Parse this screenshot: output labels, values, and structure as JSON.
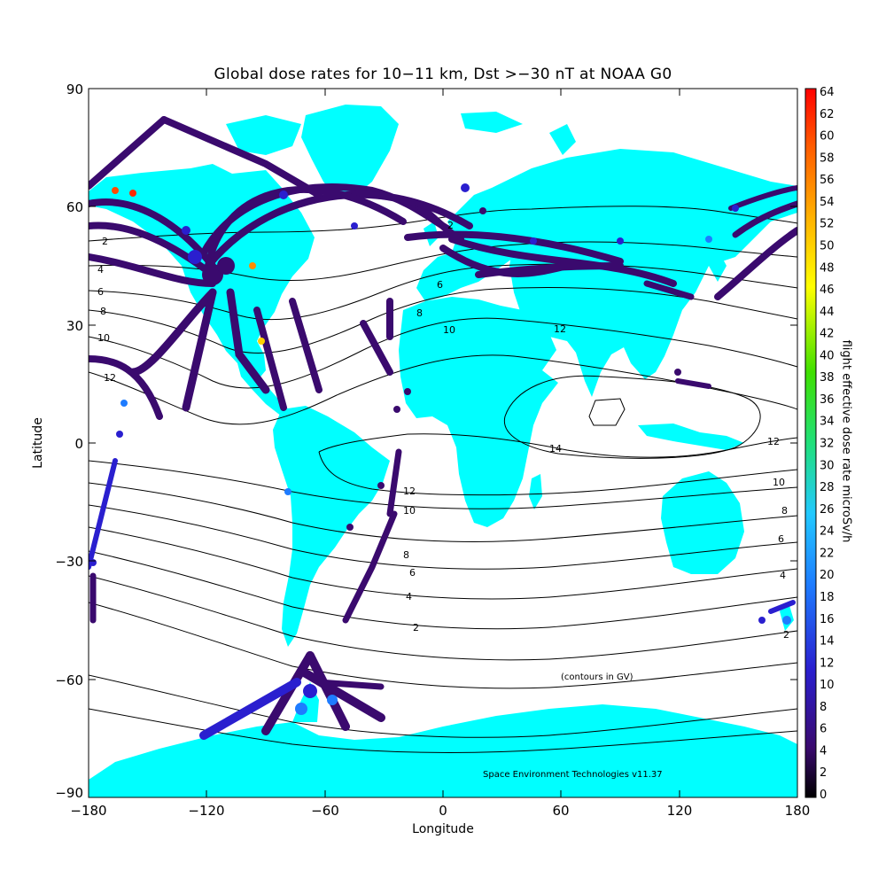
{
  "title": "Global dose rates for 10−11 km, Dst >−30 nT at NOAA G0",
  "x_axis": {
    "label": "Longitude",
    "ticks": [
      "−180",
      "−120",
      "−60",
      "0",
      "60",
      "120",
      "180"
    ]
  },
  "y_axis": {
    "label": "Latitude",
    "ticks": [
      "90",
      "60",
      "30",
      "0",
      "−30",
      "−60",
      "−90"
    ]
  },
  "colorbar": {
    "label": "flight effective dose rate microSv/h",
    "ticks": [
      "0",
      "2",
      "4",
      "6",
      "8",
      "10",
      "12",
      "14",
      "16",
      "18",
      "20",
      "22",
      "24",
      "26",
      "28",
      "30",
      "32",
      "34",
      "36",
      "38",
      "40",
      "42",
      "44",
      "46",
      "48",
      "50",
      "52",
      "54",
      "56",
      "58",
      "60",
      "62",
      "64"
    ],
    "range": [
      0,
      64
    ]
  },
  "contour_labels": [
    {
      "text": "2"
    },
    {
      "text": "4"
    },
    {
      "text": "6"
    },
    {
      "text": "8"
    },
    {
      "text": "10"
    },
    {
      "text": "12"
    },
    {
      "text": "2"
    },
    {
      "text": "6"
    },
    {
      "text": "8"
    },
    {
      "text": "10"
    },
    {
      "text": "12"
    },
    {
      "text": "14"
    },
    {
      "text": "12"
    },
    {
      "text": "10"
    },
    {
      "text": "8"
    },
    {
      "text": "6"
    },
    {
      "text": "4"
    },
    {
      "text": "2"
    },
    {
      "text": "12"
    },
    {
      "text": "10"
    },
    {
      "text": "8"
    },
    {
      "text": "6"
    },
    {
      "text": "4"
    },
    {
      "text": "2"
    }
  ],
  "annotations": {
    "contours_note": "(contours in GV)",
    "credit": "Space Environment Technologies v11.37"
  },
  "colors": {
    "land": "#00ffff",
    "ocean": "#ffffff",
    "track_main": "#3a0a6e",
    "contour": "#000000"
  },
  "chart_data": {
    "type": "map",
    "projection": "equirectangular",
    "xlim": [
      -180,
      180
    ],
    "ylim": [
      -90,
      90
    ],
    "contour_levels_GV": [
      2,
      4,
      6,
      8,
      10,
      12,
      14
    ],
    "flight_tracks": [
      {
        "from": [
          -122,
          47
        ],
        "to": [
          -158,
          21
        ]
      },
      {
        "from": [
          -118,
          34
        ],
        "to": [
          -157,
          21
        ]
      },
      {
        "from": [
          -75,
          40
        ],
        "to": [
          -0.5,
          51.5
        ]
      },
      {
        "from": [
          -74,
          41
        ],
        "to": [
          2,
          49
        ]
      },
      {
        "from": [
          -87,
          42
        ],
        "to": [
          8,
          50
        ]
      },
      {
        "from": [
          -118,
          34
        ],
        "to": [
          -0.5,
          51.5
        ]
      },
      {
        "from": [
          -122,
          37
        ],
        "to": [
          139,
          36
        ]
      },
      {
        "from": [
          -118,
          34
        ],
        "to": [
          151,
          -34
        ]
      },
      {
        "from": [
          -74,
          41
        ],
        "to": [
          -46,
          -23
        ]
      },
      {
        "from": [
          -80,
          26
        ],
        "to": [
          -58,
          -34
        ]
      },
      {
        "from": [
          -70,
          -33
        ],
        "to": [
          -58,
          -62
        ]
      },
      {
        "from": [
          -64,
          -55
        ],
        "to": [
          -40,
          -70
        ]
      },
      {
        "from": [
          -64,
          -55
        ],
        "to": [
          -110,
          -75
        ]
      },
      {
        "from": [
          10,
          55
        ],
        "to": [
          40,
          56
        ]
      },
      {
        "from": [
          40,
          56
        ],
        "to": [
          140,
          43
        ]
      },
      {
        "from": [
          100,
          25
        ],
        "to": [
          140,
          44
        ]
      },
      {
        "from": [
          140,
          37
        ],
        "to": [
          175,
          60
        ]
      },
      {
        "from": [
          -150,
          61
        ],
        "to": [
          -70,
          50
        ]
      },
      {
        "from": [
          -100,
          50
        ],
        "to": [
          -20,
          63
        ]
      },
      {
        "from": [
          -20,
          28
        ],
        "to": [
          -40,
          -45
        ]
      },
      {
        "from": [
          -178,
          -5
        ],
        "to": [
          -178,
          -45
        ]
      }
    ]
  }
}
